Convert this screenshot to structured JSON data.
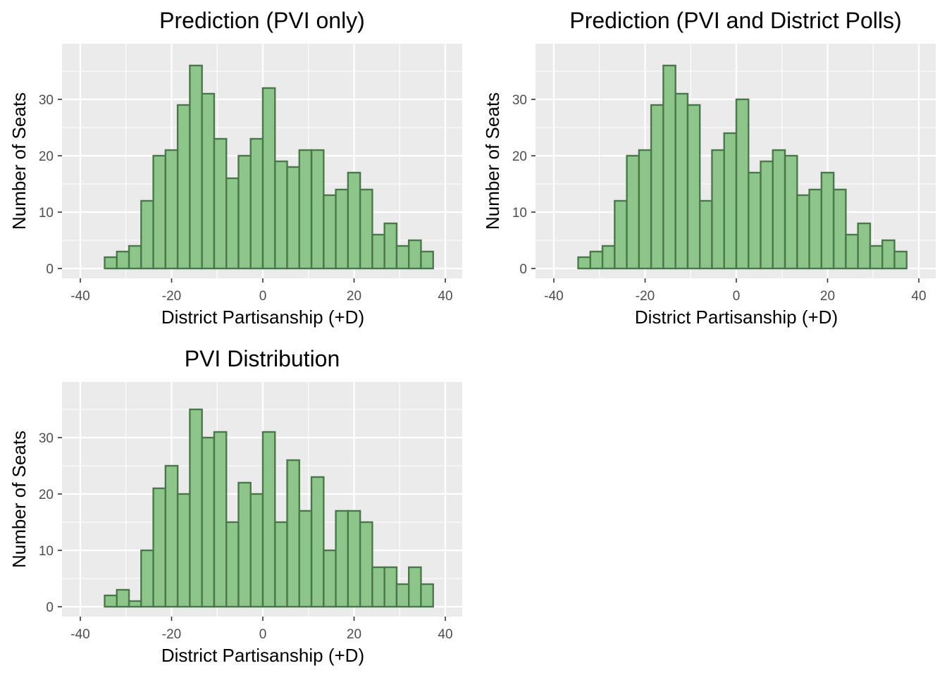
{
  "colors": {
    "panel_background": "#ebebeb",
    "bar_fill": "#8dc58a",
    "bar_outline": "#4b784a",
    "gridline": "#ffffff",
    "tick_text": "#4d4d4d"
  },
  "chart_data": [
    {
      "type": "bar",
      "title": "Prediction (PVI only)",
      "xlabel": "District Partisanship (+D)",
      "ylabel": "Number of Seats",
      "xlim": [
        -40,
        40
      ],
      "ylim": [
        0,
        40
      ],
      "x_ticks": [
        "-40",
        "-20",
        "0",
        "20",
        "40"
      ],
      "y_ticks": [
        "0",
        "10",
        "20",
        "30"
      ],
      "grid": true,
      "bin_width": 2.6667,
      "bin_start": -40,
      "values": [
        0,
        0,
        2,
        3,
        4,
        12,
        20,
        21,
        29,
        36,
        31,
        23,
        16,
        20,
        23,
        32,
        19,
        18,
        21,
        21,
        13,
        14,
        17,
        14,
        6,
        8,
        4,
        5,
        3,
        0
      ]
    },
    {
      "type": "bar",
      "title": "Prediction (PVI and District Polls)",
      "xlabel": "District Partisanship (+D)",
      "ylabel": "Number of Seats",
      "xlim": [
        -40,
        40
      ],
      "ylim": [
        0,
        40
      ],
      "x_ticks": [
        "-40",
        "-20",
        "0",
        "20",
        "40"
      ],
      "y_ticks": [
        "0",
        "10",
        "20",
        "30"
      ],
      "grid": true,
      "bin_width": 2.6667,
      "bin_start": -40,
      "values": [
        0,
        0,
        2,
        3,
        4,
        12,
        20,
        21,
        29,
        36,
        31,
        29,
        12,
        21,
        24,
        30,
        17,
        19,
        21,
        20,
        13,
        14,
        17,
        14,
        6,
        8,
        4,
        5,
        3,
        0
      ]
    },
    {
      "type": "bar",
      "title": "PVI Distribution",
      "xlabel": "District Partisanship (+D)",
      "ylabel": "Number of Seats",
      "xlim": [
        -40,
        40
      ],
      "ylim": [
        0,
        40
      ],
      "x_ticks": [
        "-40",
        "-20",
        "0",
        "20",
        "40"
      ],
      "y_ticks": [
        "0",
        "10",
        "20",
        "30"
      ],
      "grid": true,
      "bin_width": 2.6667,
      "bin_start": -40,
      "values": [
        0,
        0,
        2,
        3,
        1,
        10,
        21,
        25,
        20,
        35,
        30,
        31,
        15,
        22,
        20,
        31,
        15,
        26,
        17,
        23,
        10,
        17,
        17,
        15,
        7,
        7,
        4,
        7,
        4,
        0
      ]
    }
  ]
}
